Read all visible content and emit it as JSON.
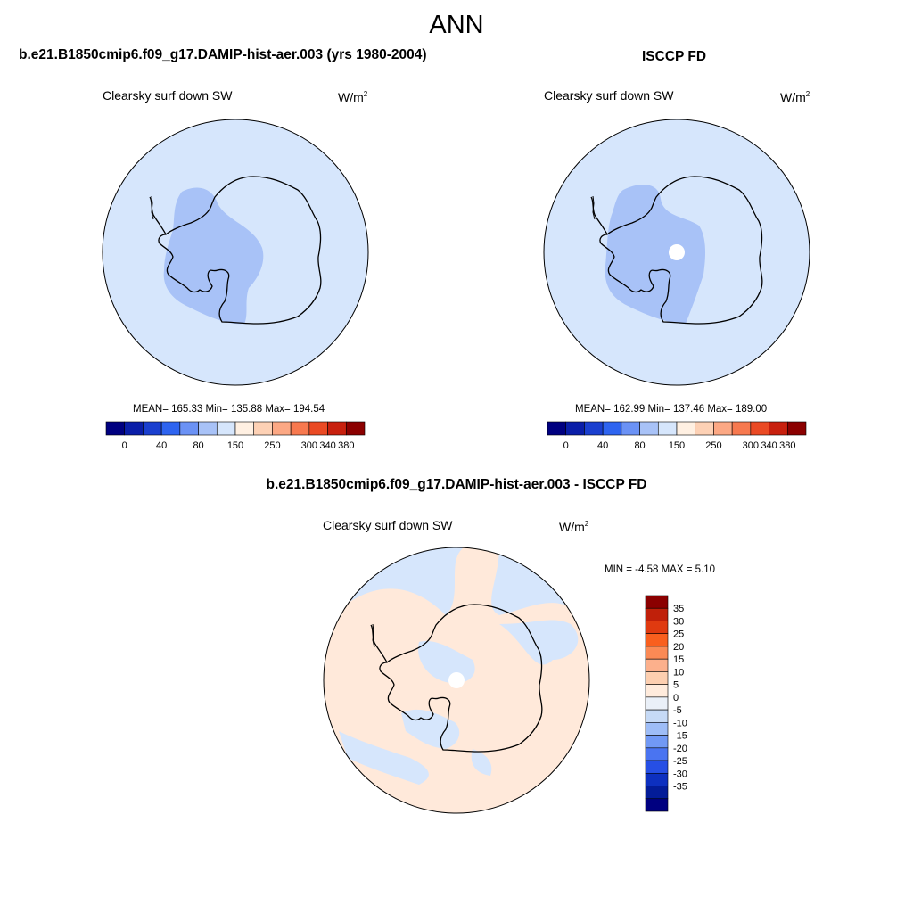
{
  "title": "ANN",
  "panels": [
    {
      "title": "b.e21.B1850cmip6.f09_g17.DAMIP-hist-aer.003 (yrs 1980-2004)",
      "variable": "Clearsky surf down SW",
      "units": "W/m",
      "units_sup": "2",
      "stats": "MEAN= 165.33  Min= 135.88  Max= 194.54"
    },
    {
      "title": "ISCCP FD",
      "variable": "Clearsky surf down SW",
      "units": "W/m",
      "units_sup": "2",
      "stats": "MEAN= 162.99  Min= 137.46  Max= 189.00"
    }
  ],
  "difference": {
    "title": "b.e21.B1850cmip6.f09_g17.DAMIP-hist-aer.003 - ISCCP FD",
    "variable": "Clearsky surf down SW",
    "units": "W/m",
    "units_sup": "2",
    "stats": "MIN =  -4.58 MAX =   5.10"
  },
  "colorbar_main": {
    "colors": [
      "#000080",
      "#0a1ea8",
      "#1a3fcf",
      "#2e64f0",
      "#6b92f5",
      "#a8c2f7",
      "#d6e6fc",
      "#fff0e2",
      "#fdd1b5",
      "#fca884",
      "#f7794f",
      "#ea4a24",
      "#c8200e",
      "#8b0000"
    ],
    "labels": [
      "0",
      "40",
      "80",
      "150",
      "250",
      "300",
      "340",
      "380"
    ]
  },
  "colorbar_diff": {
    "colors": [
      "#8b0000",
      "#c0200a",
      "#e03a10",
      "#f95f1e",
      "#fb8a55",
      "#fcb08c",
      "#fdcfb0",
      "#ffebdc",
      "#eaf0f8",
      "#c6daf6",
      "#9ebdf7",
      "#7199f5",
      "#4a74f1",
      "#264fe5",
      "#0d30c0",
      "#031c98",
      "#000080"
    ],
    "labels": [
      "35",
      "30",
      "25",
      "20",
      "15",
      "10",
      "5",
      "0",
      "-5",
      "-10",
      "-15",
      "-20",
      "-25",
      "-30",
      "-35"
    ]
  },
  "map_colors": {
    "light_blue": "#d6e6fc",
    "mid_blue": "#a8c2f7",
    "light_orange": "#ffe9da",
    "coast": "#000000"
  }
}
